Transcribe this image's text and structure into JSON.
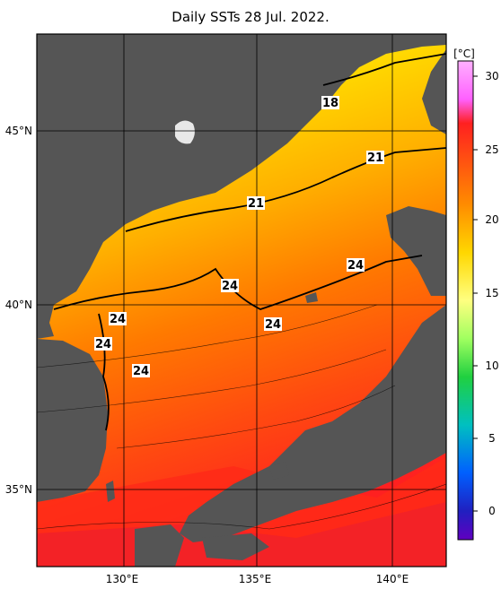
{
  "title": "Daily SSTs 28 Jul. 2022.",
  "lat_labels": [
    "45°N",
    "40°N",
    "35°N"
  ],
  "lon_labels": [
    "130°E",
    "135°E",
    "140°E"
  ],
  "colorbar": {
    "unit": "[°C]",
    "ticks": [
      "30",
      "25",
      "20",
      "15",
      "10",
      "5",
      "0"
    ],
    "colors": [
      "#ffb0ff",
      "#ff2020",
      "#ff8c00",
      "#ffd700",
      "#ffff60",
      "#a0ff60",
      "#20d040",
      "#00c0c0",
      "#0060ff",
      "#2020c0",
      "#5000c0"
    ]
  },
  "isotherm_labels": [
    {
      "text": "18"
    },
    {
      "text": "21"
    },
    {
      "text": "21"
    },
    {
      "text": "24"
    },
    {
      "text": "24"
    },
    {
      "text": "24"
    },
    {
      "text": "24"
    },
    {
      "text": "24"
    },
    {
      "text": "24"
    }
  ],
  "colors": {
    "land": "#555555",
    "sea_warm": "#ff3a10",
    "sea_mid": "#ff9a00",
    "sea_cool": "#ffe030"
  }
}
